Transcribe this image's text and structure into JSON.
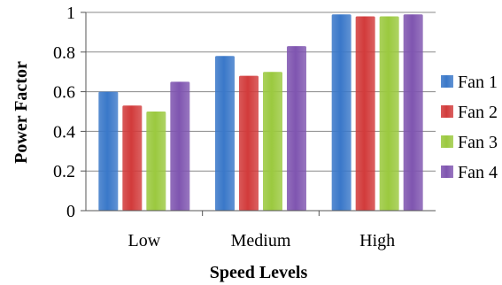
{
  "chart_data": {
    "type": "bar",
    "title": "",
    "xlabel": "Speed Levels",
    "ylabel": "Power  Factor",
    "categories": [
      "Low",
      "Medium",
      "High"
    ],
    "ylim": [
      0,
      1
    ],
    "yticks": [
      0,
      0.2,
      0.4,
      0.6,
      0.8,
      1
    ],
    "ytick_labels": [
      "0",
      "0.2",
      "0.4",
      "0.6",
      "0.8",
      "1"
    ],
    "grid": true,
    "legend_position": "right",
    "series": [
      {
        "name": "Fan 1",
        "color": "#3a78c9",
        "values": [
          0.6,
          0.78,
          0.99
        ]
      },
      {
        "name": "Fan 2",
        "color": "#d23b3b",
        "values": [
          0.53,
          0.68,
          0.98
        ]
      },
      {
        "name": "Fan 3",
        "color": "#9bc93f",
        "values": [
          0.5,
          0.7,
          0.98
        ]
      },
      {
        "name": "Fan 4",
        "color": "#7f55b0",
        "values": [
          0.65,
          0.83,
          0.99
        ]
      }
    ]
  }
}
